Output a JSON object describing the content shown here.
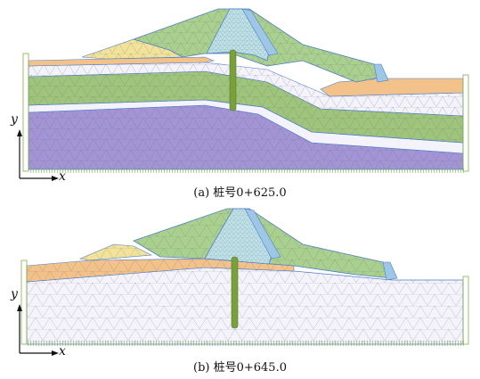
{
  "panel_a": {
    "caption": "(a) 桩号0+625.0",
    "axis_x": "x",
    "axis_y": "y"
  },
  "panel_b": {
    "caption": "(b) 桩号0+645.0",
    "axis_x": "x",
    "axis_y": "y"
  },
  "colors": {
    "shell_green": "#a9d08e",
    "core_cyan": "#bfe3e8",
    "upper_yellow": "#f3e39a",
    "orange_layer": "#f2c28a",
    "white_layer": "#f4f2fb",
    "green_layer": "#9fc57c",
    "purple_layer": "#a394d6",
    "pile": "#7aa03c",
    "outline": "#4f7fc9",
    "boundary": "#7fb04a"
  }
}
